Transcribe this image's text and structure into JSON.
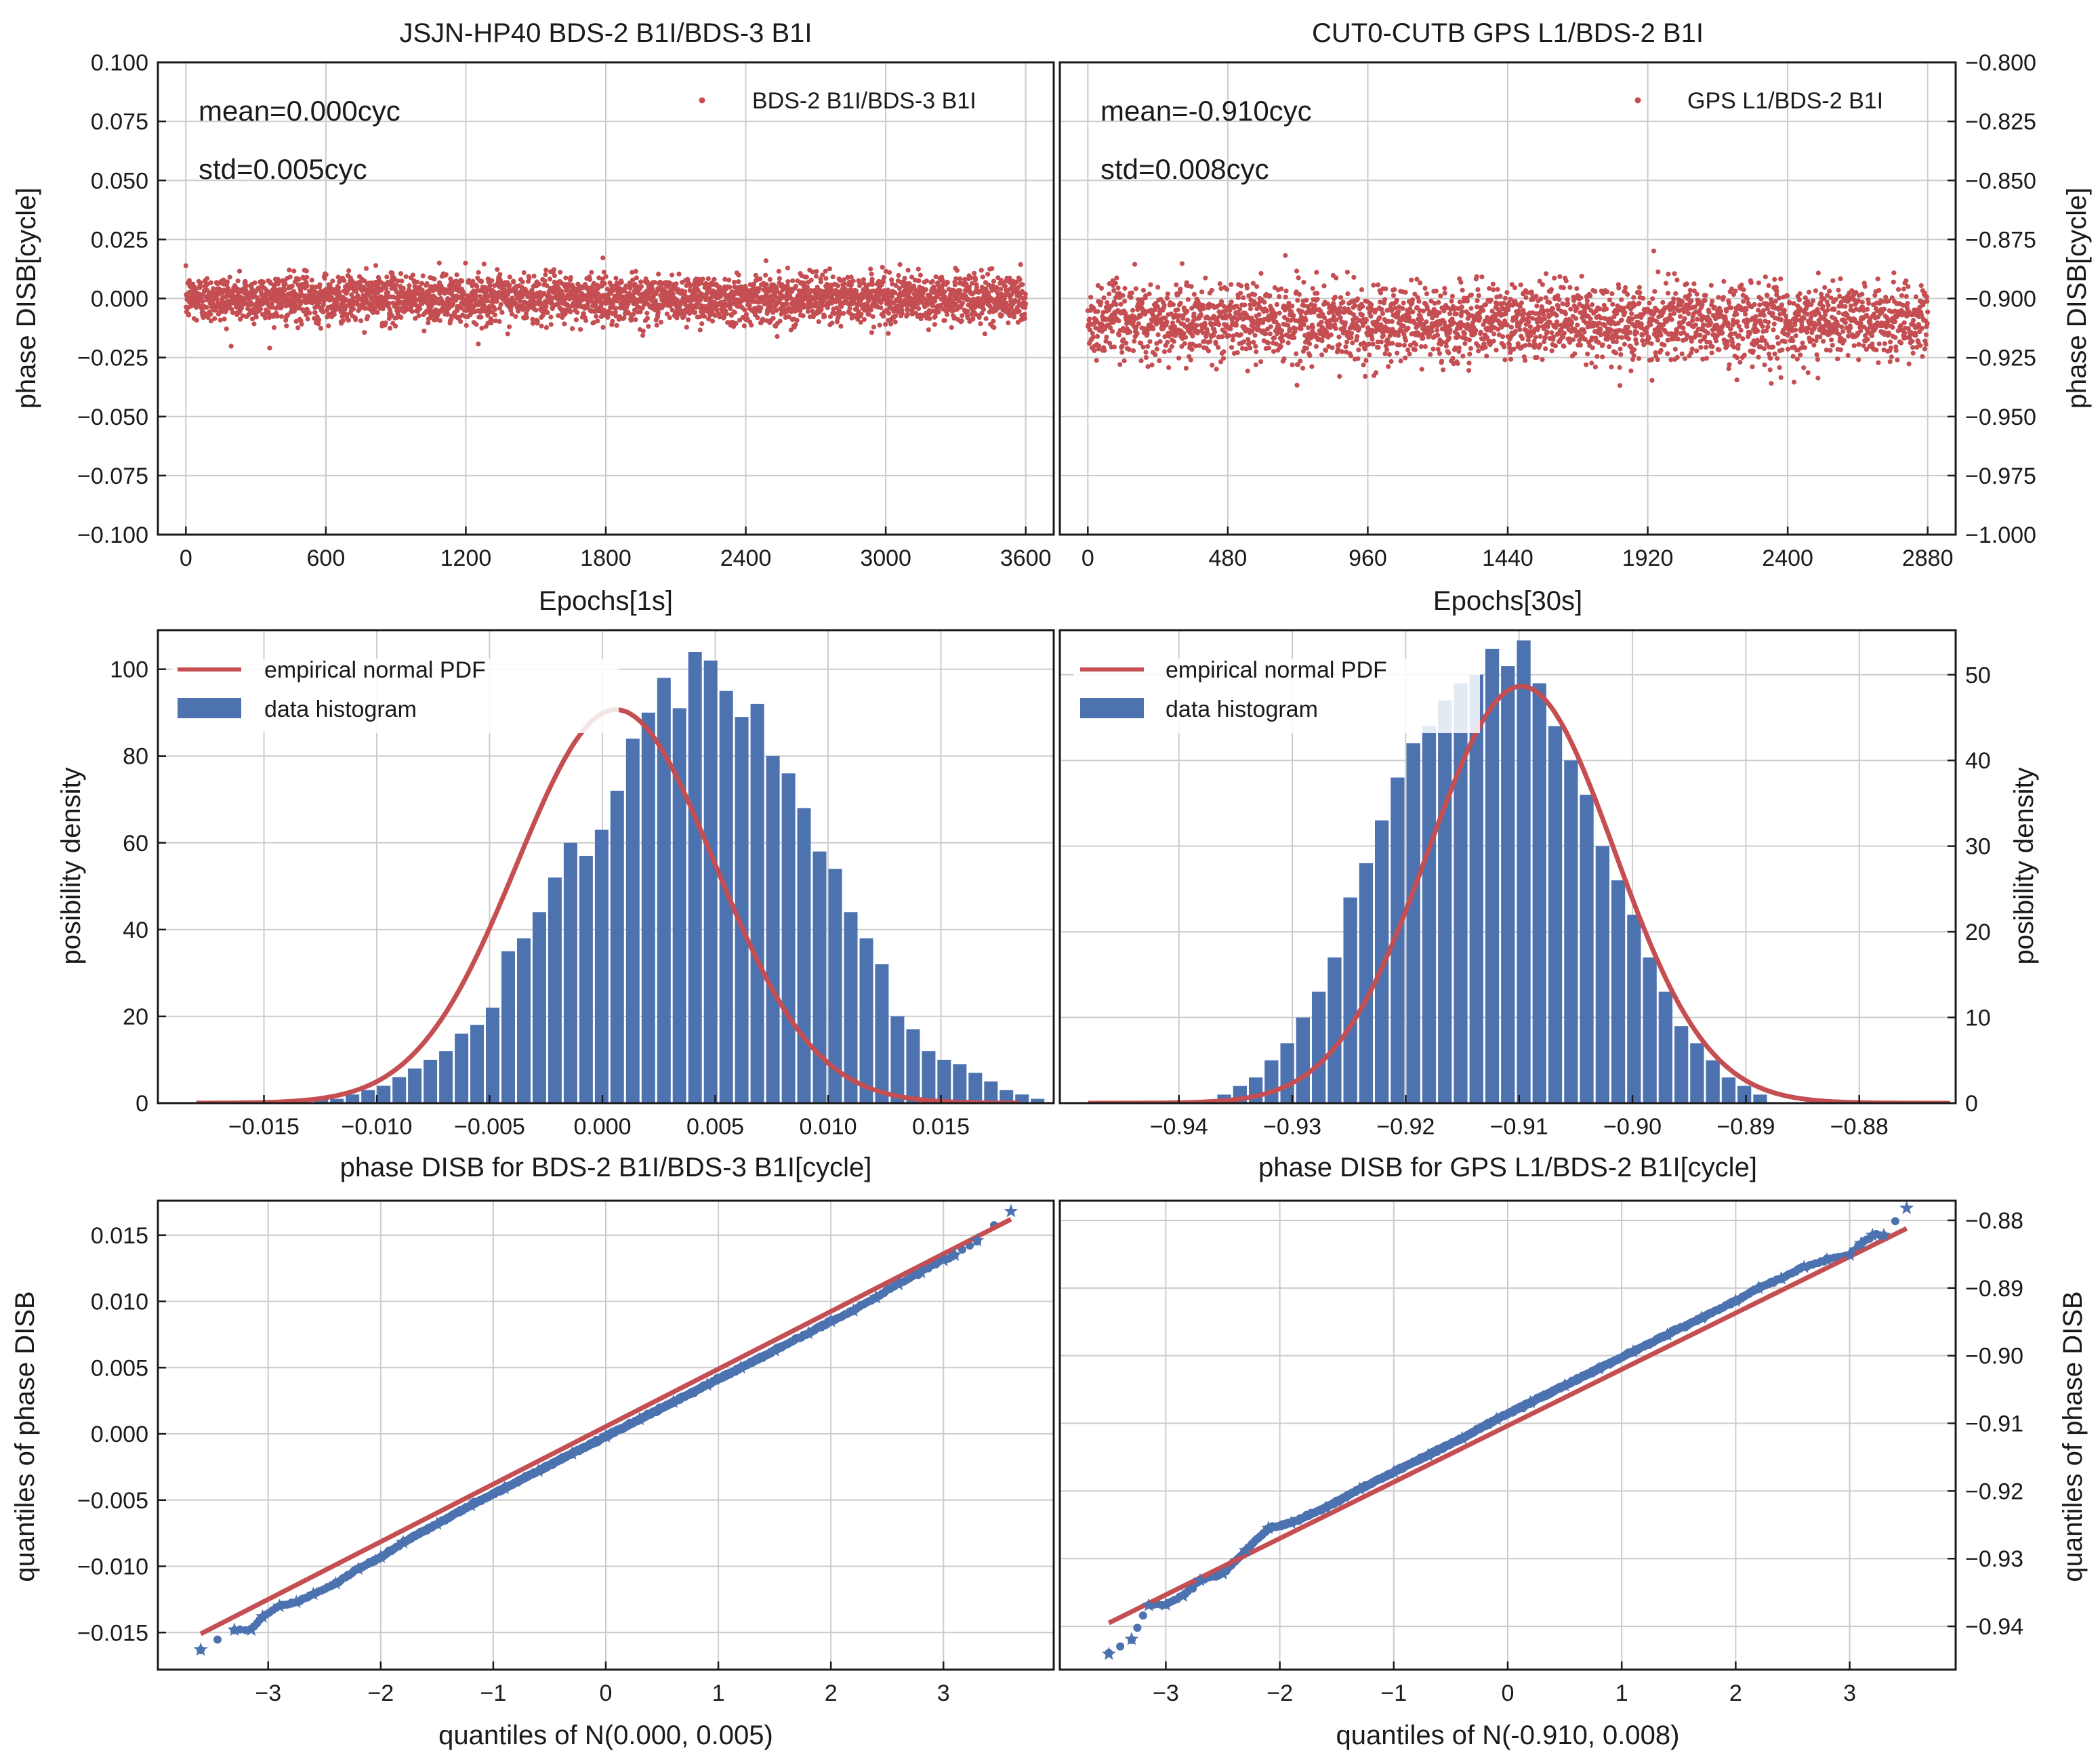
{
  "chart_data": [
    {
      "id": "scatter-left",
      "type": "scatter",
      "title": "JSJN-HP40 BDS-2 B1I/BDS-3 B1I",
      "xlabel": "Epochs[1s]",
      "ylabel": "phase DISB[cycle]",
      "xlim": [
        -120,
        3720
      ],
      "ylim": [
        -0.1,
        0.1
      ],
      "xticks": [
        0,
        600,
        1200,
        1800,
        2400,
        3000,
        3600
      ],
      "yticks": [
        -0.1,
        -0.075,
        -0.05,
        -0.025,
        0.0,
        0.025,
        0.05,
        0.075,
        0.1
      ],
      "ytick_labels": [
        "−0.100",
        "−0.075",
        "−0.050",
        "−0.025",
        "0.000",
        "0.025",
        "0.050",
        "0.075",
        "0.100"
      ],
      "legend": [
        "BDS-2 B1I/BDS-3 B1I"
      ],
      "annotations": [
        "mean=0.000cyc",
        "std=0.005cyc"
      ],
      "series": [
        {
          "name": "BDS-2 B1I/BDS-3 B1I",
          "color": "#c44e52",
          "x_range": [
            0,
            3600
          ],
          "n_points": 3600,
          "mean": 0.0,
          "std": 0.005
        }
      ]
    },
    {
      "id": "scatter-right",
      "type": "scatter",
      "title": "CUT0-CUTB GPS L1/BDS-2 B1I",
      "xlabel": "Epochs[30s]",
      "ylabel": "phase DISB[cycle]",
      "xlim": [
        -96,
        2976
      ],
      "ylim": [
        -1.0,
        -0.8
      ],
      "xticks": [
        0,
        480,
        960,
        1440,
        1920,
        2400,
        2880
      ],
      "yticks": [
        -1.0,
        -0.975,
        -0.95,
        -0.925,
        -0.9,
        -0.875,
        -0.85,
        -0.825,
        -0.8
      ],
      "ytick_labels": [
        "−1.000",
        "−0.975",
        "−0.950",
        "−0.925",
        "−0.900",
        "−0.875",
        "−0.850",
        "−0.825",
        "−0.800"
      ],
      "legend": [
        "GPS L1/BDS-2 B1I"
      ],
      "annotations": [
        "mean=-0.910cyc",
        "std=0.008cyc"
      ],
      "series": [
        {
          "name": "GPS L1/BDS-2 B1I",
          "color": "#c44e52",
          "x_range": [
            0,
            2880
          ],
          "n_points": 2880,
          "mean": -0.91,
          "std": 0.008
        }
      ]
    },
    {
      "id": "hist-left",
      "type": "bar",
      "xlabel": "phase DISB for BDS-2 B1I/BDS-3 B1I[cycle]",
      "ylabel": "posibility density",
      "xlim": [
        -0.0197,
        0.02
      ],
      "ylim": [
        0,
        109
      ],
      "xticks": [
        -0.015,
        -0.01,
        -0.005,
        0.0,
        0.005,
        0.01,
        0.015
      ],
      "xtick_labels": [
        "−0.015",
        "−0.010",
        "−0.005",
        "0.000",
        "0.005",
        "0.010",
        "0.015"
      ],
      "yticks": [
        0,
        20,
        40,
        60,
        80,
        100
      ],
      "legend": [
        "empirical normal PDF",
        "data histogram"
      ],
      "bin_start": -0.0128,
      "bin_width": 0.00069,
      "bar_color": "#4c72b0",
      "values": [
        1,
        1,
        2,
        3,
        4,
        6,
        8,
        10,
        12,
        16,
        18,
        22,
        35,
        38,
        44,
        52,
        60,
        57,
        63,
        72,
        84,
        90,
        98,
        91,
        104,
        102,
        95,
        89,
        92,
        80,
        76,
        68,
        58,
        54,
        44,
        38,
        32,
        20,
        17,
        12,
        10,
        9,
        7,
        5,
        3,
        2,
        1
      ],
      "pdf": {
        "name": "empirical normal PDF",
        "mu": 0.0006,
        "sigma": 0.0044,
        "color": "#c44e52",
        "range": [
          -0.018,
          0.0185
        ]
      }
    },
    {
      "id": "hist-right",
      "type": "bar",
      "xlabel": "phase DISB for GPS L1/BDS-2 B1I[cycle]",
      "ylabel": "posibility density",
      "xlim": [
        -0.9505,
        -0.8715
      ],
      "ylim": [
        0,
        55.2
      ],
      "xticks": [
        -0.94,
        -0.93,
        -0.92,
        -0.91,
        -0.9,
        -0.89,
        -0.88
      ],
      "xtick_labels": [
        "−0.94",
        "−0.93",
        "−0.92",
        "−0.91",
        "−0.90",
        "−0.89",
        "−0.88"
      ],
      "yticks": [
        0,
        10,
        20,
        30,
        40,
        50
      ],
      "legend": [
        "empirical normal PDF",
        "data histogram"
      ],
      "bin_start": -0.9367,
      "bin_width": 0.00139,
      "bar_color": "#4c72b0",
      "values": [
        1,
        2,
        3,
        5,
        7,
        10,
        13,
        17,
        24,
        28,
        33,
        38,
        42,
        44,
        47,
        49,
        50,
        53,
        51,
        54,
        49,
        44,
        40,
        36,
        30,
        26,
        22,
        17,
        13,
        9,
        7,
        5,
        3,
        2,
        1
      ],
      "pdf": {
        "name": "empirical normal PDF",
        "mu": -0.9098,
        "sigma": 0.0082,
        "color": "#c44e52",
        "range": [
          -0.948,
          -0.872
        ]
      }
    },
    {
      "id": "qq-left",
      "type": "scatter",
      "xlabel": "quantiles of N(0.000, 0.005)",
      "ylabel": "quantiles of phase DISB",
      "xlim": [
        -3.98,
        3.98
      ],
      "ylim": [
        -0.0178,
        0.0176
      ],
      "xticks": [
        -3,
        -2,
        -1,
        0,
        1,
        2,
        3
      ],
      "xtick_labels": [
        "−3",
        "−2",
        "−1",
        "0",
        "1",
        "2",
        "3"
      ],
      "yticks": [
        -0.015,
        -0.01,
        -0.005,
        0.0,
        0.005,
        0.01,
        0.015
      ],
      "ytick_labels": [
        "−0.015",
        "−0.010",
        "−0.005",
        "0.000",
        "0.005",
        "0.010",
        "0.015"
      ],
      "reference_line": {
        "x": [
          -3.6,
          3.6
        ],
        "y": [
          -0.0151,
          0.0162
        ],
        "color": "#c44e52"
      },
      "points": {
        "color": "#4c72b0",
        "marker": "star",
        "x": [
          -3.6,
          -3.3,
          -3.15,
          -3.05,
          -2.9,
          -2.75,
          -2.6,
          -2.4,
          -2.2,
          -2.0,
          -1.8,
          -1.5,
          -1.2,
          -0.9,
          -0.6,
          -0.3,
          0.0,
          0.3,
          0.6,
          0.9,
          1.2,
          1.5,
          1.8,
          2.0,
          2.2,
          2.4,
          2.6,
          2.8,
          3.0,
          3.1,
          3.3,
          3.6
        ],
        "y": [
          -0.0163,
          -0.0148,
          -0.0148,
          -0.0138,
          -0.013,
          -0.0127,
          -0.0121,
          -0.0113,
          -0.0102,
          -0.0093,
          -0.0082,
          -0.0068,
          -0.0054,
          -0.0041,
          -0.0028,
          -0.0015,
          -0.0002,
          0.0011,
          0.0024,
          0.0037,
          0.005,
          0.0063,
          0.0076,
          0.0085,
          0.0093,
          0.0103,
          0.0113,
          0.0122,
          0.0131,
          0.0135,
          0.0146,
          0.0168
        ]
      }
    },
    {
      "id": "qq-right",
      "type": "scatter",
      "xlabel": "quantiles of N(-0.910, 0.008)",
      "ylabel": "quantiles of phase DISB",
      "xlim": [
        -3.93,
        3.93
      ],
      "ylim": [
        -0.9464,
        -0.8771
      ],
      "xticks": [
        -3,
        -2,
        -1,
        0,
        1,
        2,
        3
      ],
      "xtick_labels": [
        "−3",
        "−2",
        "−1",
        "0",
        "1",
        "2",
        "3"
      ],
      "yticks": [
        -0.94,
        -0.93,
        -0.92,
        -0.91,
        -0.9,
        -0.89,
        -0.88
      ],
      "ytick_labels": [
        "−0.94",
        "−0.93",
        "−0.92",
        "−0.91",
        "−0.90",
        "−0.89",
        "−0.88"
      ],
      "reference_line": {
        "x": [
          -3.5,
          3.5
        ],
        "y": [
          -0.9395,
          -0.8812
        ],
        "color": "#c44e52"
      },
      "points": {
        "color": "#4c72b0",
        "marker": "star",
        "x": [
          -3.5,
          -3.3,
          -3.15,
          -3.0,
          -2.85,
          -2.7,
          -2.5,
          -2.3,
          -2.1,
          -1.9,
          -1.6,
          -1.3,
          -1.0,
          -0.7,
          -0.4,
          -0.1,
          0.2,
          0.5,
          0.8,
          1.1,
          1.4,
          1.7,
          2.0,
          2.2,
          2.4,
          2.6,
          2.8,
          3.0,
          3.1,
          3.2,
          3.3,
          3.5
        ],
        "y": [
          -0.9441,
          -0.9419,
          -0.9369,
          -0.9368,
          -0.9355,
          -0.9332,
          -0.9322,
          -0.9288,
          -0.9255,
          -0.9247,
          -0.9225,
          -0.9197,
          -0.9172,
          -0.9147,
          -0.9122,
          -0.9094,
          -0.9069,
          -0.9044,
          -0.9019,
          -0.8994,
          -0.8969,
          -0.8944,
          -0.8919,
          -0.89,
          -0.8886,
          -0.8869,
          -0.8858,
          -0.8851,
          -0.8834,
          -0.8822,
          -0.8822,
          -0.8782
        ]
      }
    }
  ]
}
